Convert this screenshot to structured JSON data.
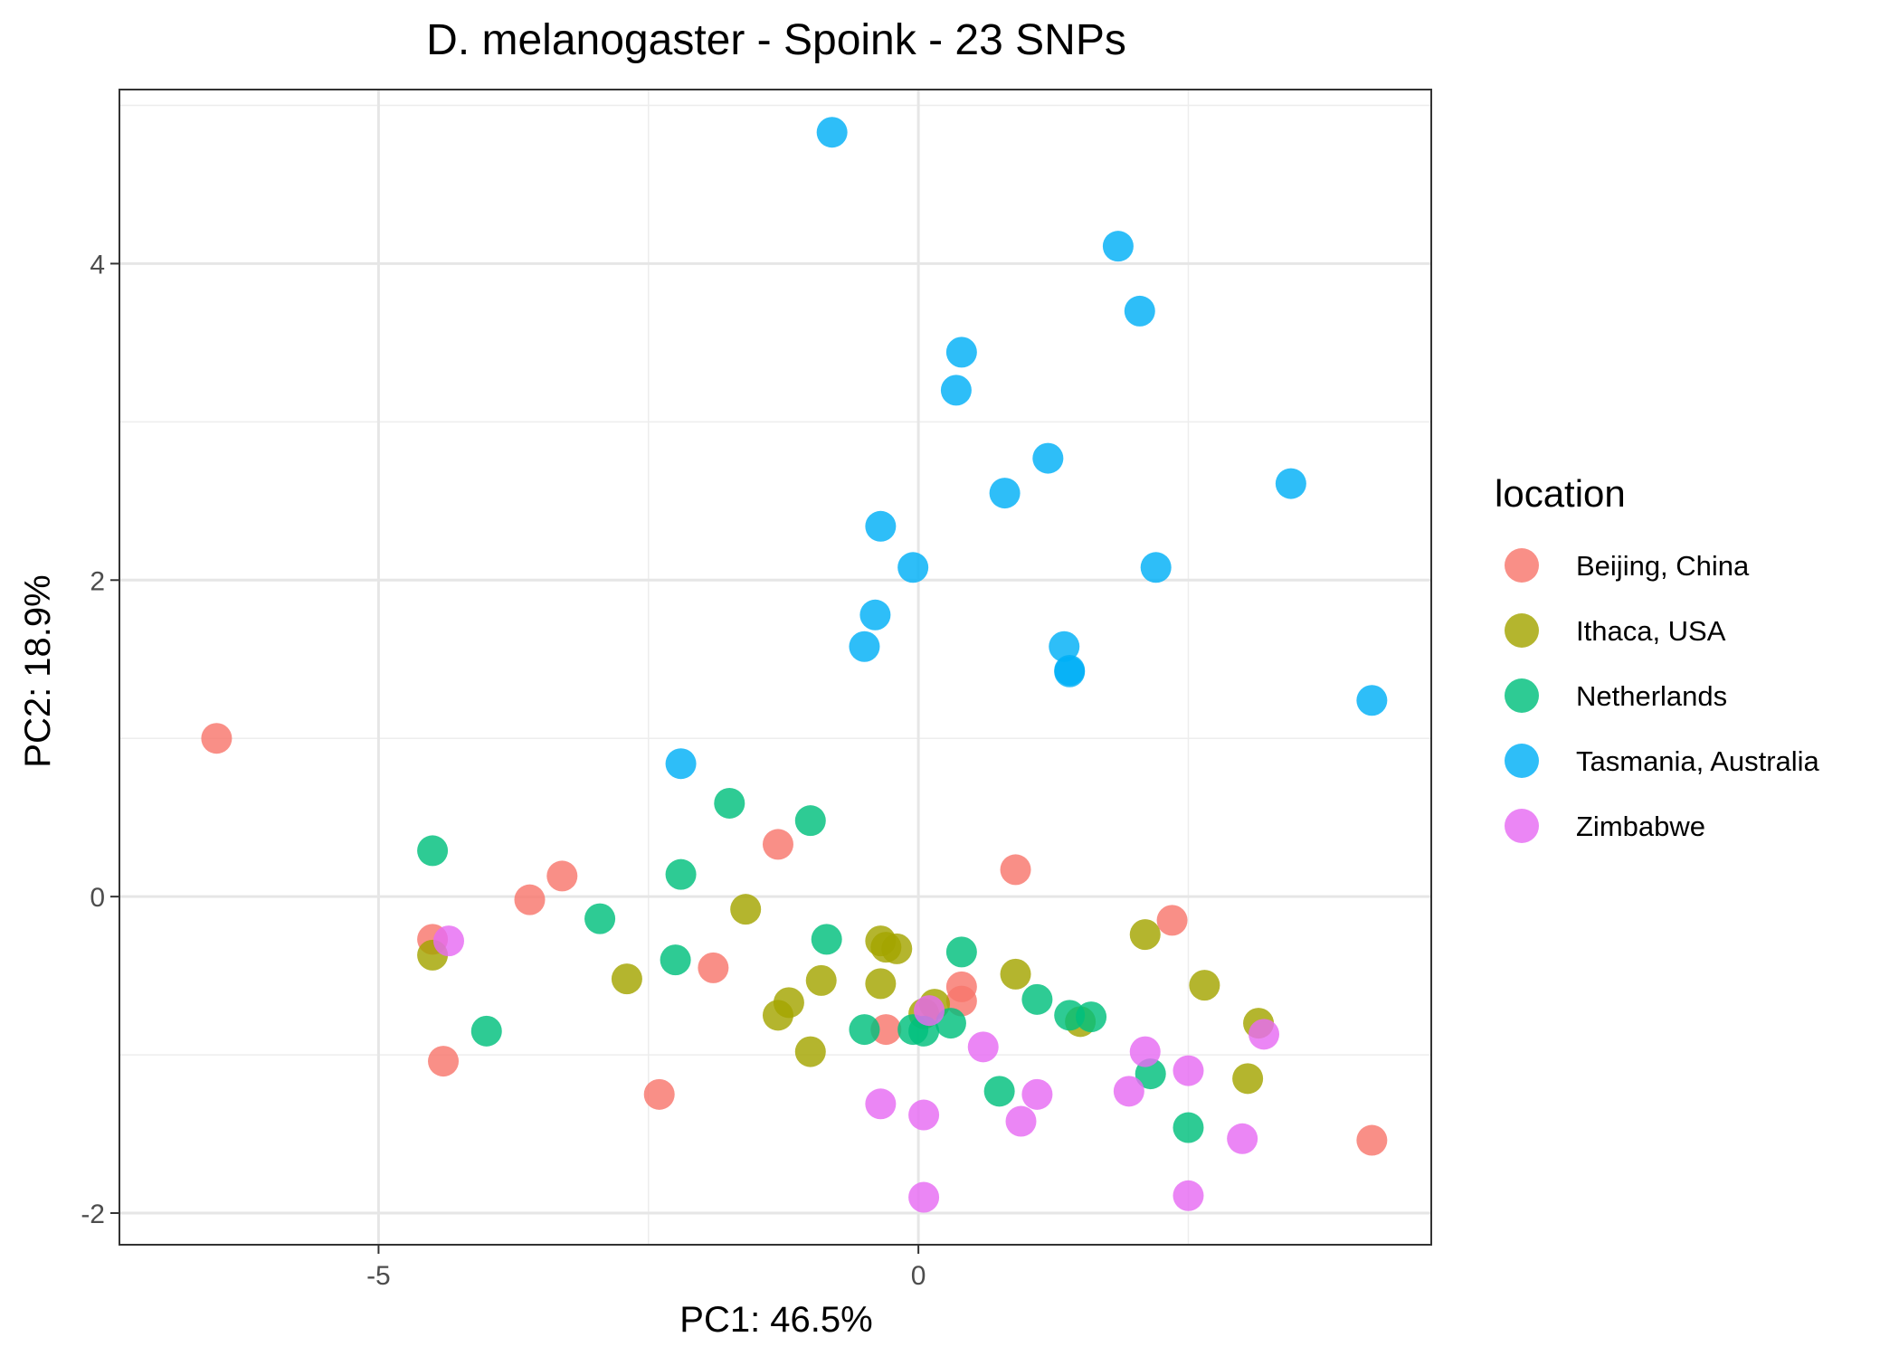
{
  "chart_data": {
    "type": "scatter",
    "title": "D. melanogaster - Spoink - 23 SNPs",
    "xlabel": "PC1: 46.5%",
    "ylabel": "PC2: 18.9%",
    "xlim": [
      -7.4,
      4.75
    ],
    "ylim": [
      -2.2,
      5.1
    ],
    "x_ticks": [
      -5,
      0
    ],
    "y_ticks": [
      -2,
      0,
      2,
      4
    ],
    "x_tick_labels": [
      "-5",
      "0"
    ],
    "y_tick_labels": [
      "-2",
      "0",
      "2",
      "4"
    ],
    "grid": true,
    "legend": {
      "title": "location",
      "position": "right"
    },
    "series": [
      {
        "name": "Beijing, China",
        "color": "#F8766D",
        "points": [
          [
            -6.5,
            1.0
          ],
          [
            -1.3,
            0.33
          ],
          [
            0.9,
            0.17
          ],
          [
            -3.3,
            0.13
          ],
          [
            -3.6,
            -0.02
          ],
          [
            -4.5,
            -0.27
          ],
          [
            -4.4,
            -1.04
          ],
          [
            -1.9,
            -0.45
          ],
          [
            0.4,
            -0.57
          ],
          [
            0.4,
            -0.66
          ],
          [
            -0.3,
            -0.84
          ],
          [
            2.35,
            -0.15
          ],
          [
            -2.4,
            -1.25
          ],
          [
            4.2,
            -1.54
          ]
        ]
      },
      {
        "name": "Ithaca, USA",
        "color": "#A3A500",
        "points": [
          [
            -4.5,
            -0.37
          ],
          [
            -2.7,
            -0.52
          ],
          [
            -1.6,
            -0.08
          ],
          [
            -1.3,
            -0.75
          ],
          [
            -1.2,
            -0.67
          ],
          [
            -0.9,
            -0.53
          ],
          [
            -1.0,
            -0.98
          ],
          [
            -0.35,
            -0.28
          ],
          [
            -0.3,
            -0.32
          ],
          [
            -0.2,
            -0.33
          ],
          [
            -0.35,
            -0.55
          ],
          [
            0.15,
            -0.68
          ],
          [
            0.05,
            -0.74
          ],
          [
            0.9,
            -0.49
          ],
          [
            1.5,
            -0.79
          ],
          [
            2.1,
            -0.24
          ],
          [
            2.65,
            -0.56
          ],
          [
            3.15,
            -0.8
          ],
          [
            3.05,
            -1.15
          ]
        ]
      },
      {
        "name": "Netherlands",
        "color": "#00BF7D",
        "points": [
          [
            -4.5,
            0.29
          ],
          [
            -2.2,
            0.14
          ],
          [
            -1.75,
            0.59
          ],
          [
            -1.0,
            0.48
          ],
          [
            -2.95,
            -0.14
          ],
          [
            -2.25,
            -0.4
          ],
          [
            -0.85,
            -0.27
          ],
          [
            -4.0,
            -0.85
          ],
          [
            0.4,
            -0.35
          ],
          [
            -0.5,
            -0.84
          ],
          [
            0.05,
            -0.85
          ],
          [
            -0.05,
            -0.84
          ],
          [
            0.3,
            -0.8
          ],
          [
            1.1,
            -0.65
          ],
          [
            1.4,
            -0.75
          ],
          [
            1.6,
            -0.76
          ],
          [
            0.75,
            -1.23
          ],
          [
            2.15,
            -1.12
          ],
          [
            2.5,
            -1.46
          ]
        ]
      },
      {
        "name": "Tasmania, Australia",
        "color": "#00B0F6",
        "points": [
          [
            -0.8,
            4.83
          ],
          [
            1.85,
            4.11
          ],
          [
            2.05,
            3.7
          ],
          [
            0.4,
            3.44
          ],
          [
            0.35,
            3.2
          ],
          [
            1.2,
            2.77
          ],
          [
            0.8,
            2.55
          ],
          [
            3.45,
            2.61
          ],
          [
            -0.35,
            2.34
          ],
          [
            -0.05,
            2.08
          ],
          [
            2.2,
            2.08
          ],
          [
            -0.4,
            1.78
          ],
          [
            -0.5,
            1.58
          ],
          [
            1.35,
            1.58
          ],
          [
            1.4,
            1.43
          ],
          [
            1.4,
            1.42
          ],
          [
            4.2,
            1.24
          ],
          [
            -2.2,
            0.84
          ]
        ]
      },
      {
        "name": "Zimbabwe",
        "color": "#E76BF3",
        "points": [
          [
            -4.35,
            -0.28
          ],
          [
            0.1,
            -0.72
          ],
          [
            0.6,
            -0.95
          ],
          [
            2.1,
            -0.98
          ],
          [
            3.2,
            -0.87
          ],
          [
            2.5,
            -1.1
          ],
          [
            -0.35,
            -1.31
          ],
          [
            0.05,
            -1.38
          ],
          [
            0.95,
            -1.42
          ],
          [
            1.1,
            -1.25
          ],
          [
            1.95,
            -1.23
          ],
          [
            3.0,
            -1.53
          ],
          [
            0.05,
            -1.9
          ],
          [
            2.5,
            -1.89
          ]
        ]
      }
    ]
  }
}
